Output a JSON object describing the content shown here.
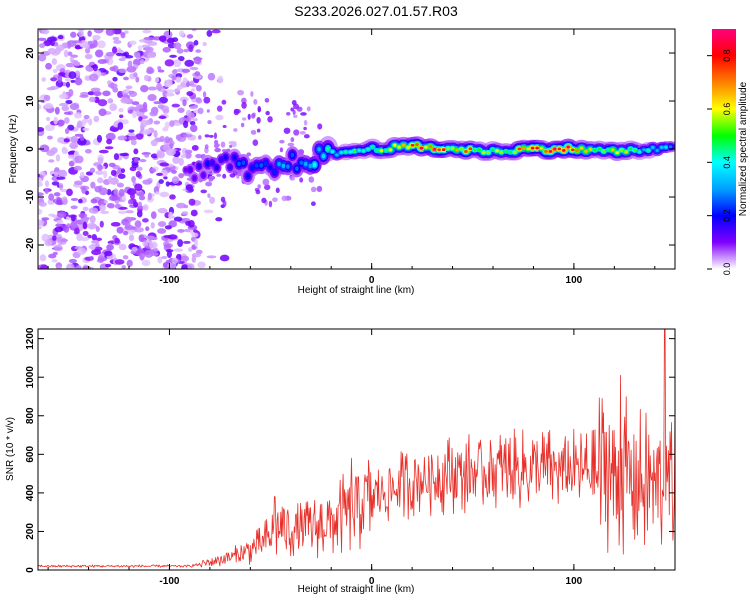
{
  "title": "S233.2026.027.01.57.R03",
  "chart_data": [
    {
      "type": "heatmap",
      "xlabel": "Height of straight line (km)",
      "ylabel": "Frequency (Hz)",
      "xlim": [
        -165,
        150
      ],
      "ylim": [
        -25,
        25
      ],
      "xticks": [
        -100,
        0,
        100
      ],
      "yticks": [
        -20,
        -10,
        0,
        10,
        20
      ],
      "colorbar": {
        "label": "Normalized spectral amplitude",
        "range": [
          0,
          0.9
        ],
        "ticks": [
          0.0,
          0.2,
          0.4,
          0.6,
          0.8
        ],
        "colors": [
          "#ffffff",
          "#8000ff",
          "#0000ff",
          "#00a0ff",
          "#00ffff",
          "#00ff00",
          "#ffff00",
          "#ff8000",
          "#ff0000",
          "#ff0080"
        ]
      },
      "noise_region": {
        "x": [
          -165,
          -85
        ],
        "ylim": [
          -25,
          25
        ],
        "level": 0.05
      },
      "ridge": [
        {
          "x": -90,
          "y": -6
        },
        {
          "x": -80,
          "y": -4
        },
        {
          "x": -70,
          "y": -3
        },
        {
          "x": -60,
          "y": -5
        },
        {
          "x": -50,
          "y": -4
        },
        {
          "x": -40,
          "y": -3
        },
        {
          "x": -30,
          "y": -2
        },
        {
          "x": -20,
          "y": -1
        },
        {
          "x": -10,
          "y": -0.5
        },
        {
          "x": 0,
          "y": 0
        },
        {
          "x": 20,
          "y": 0.5
        },
        {
          "x": 40,
          "y": 0
        },
        {
          "x": 60,
          "y": -0.5
        },
        {
          "x": 80,
          "y": 0
        },
        {
          "x": 100,
          "y": 0
        },
        {
          "x": 120,
          "y": -0.5
        },
        {
          "x": 145,
          "y": 0
        }
      ],
      "ridge_amplitude": [
        {
          "x": -90,
          "value": 0.15
        },
        {
          "x": -60,
          "value": 0.25
        },
        {
          "x": -30,
          "value": 0.35
        },
        {
          "x": 0,
          "value": 0.55
        },
        {
          "x": 25,
          "value": 0.85
        },
        {
          "x": 60,
          "value": 0.6
        },
        {
          "x": 95,
          "value": 0.85
        },
        {
          "x": 130,
          "value": 0.5
        },
        {
          "x": 145,
          "value": 0.35
        }
      ]
    },
    {
      "type": "line",
      "xlabel": "Height of straight line (km)",
      "ylabel": "SNR (10 * v/v)",
      "xlim": [
        -165,
        150
      ],
      "ylim": [
        0,
        1250
      ],
      "xticks": [
        -100,
        0,
        100
      ],
      "yticks": [
        0,
        200,
        400,
        600,
        800,
        1000,
        1200
      ],
      "color": "#e8302a",
      "series": [
        {
          "envelope": [
            {
              "x": -165,
              "value": 20
            },
            {
              "x": -90,
              "value": 20
            },
            {
              "x": -80,
              "value": 40
            },
            {
              "x": -65,
              "value": 80
            },
            {
              "x": -55,
              "value": 130
            },
            {
              "x": -45,
              "value": 220
            },
            {
              "x": -35,
              "value": 200
            },
            {
              "x": -25,
              "value": 230
            },
            {
              "x": -15,
              "value": 280
            },
            {
              "x": -5,
              "value": 350
            },
            {
              "x": 5,
              "value": 400
            },
            {
              "x": 20,
              "value": 460
            },
            {
              "x": 40,
              "value": 500
            },
            {
              "x": 60,
              "value": 510
            },
            {
              "x": 80,
              "value": 520
            },
            {
              "x": 100,
              "value": 520
            },
            {
              "x": 120,
              "value": 510
            },
            {
              "x": 135,
              "value": 450
            },
            {
              "x": 150,
              "value": 420
            }
          ],
          "spikes": [
            {
              "x": -48,
              "value": 380
            },
            {
              "x": -45,
              "value": 300
            },
            {
              "x": -31,
              "value": 320
            },
            {
              "x": -10,
              "value": 580
            },
            {
              "x": 123,
              "value": 1010
            },
            {
              "x": 145,
              "value": 1250
            },
            {
              "x": 150,
              "value": 850
            }
          ]
        }
      ]
    }
  ]
}
